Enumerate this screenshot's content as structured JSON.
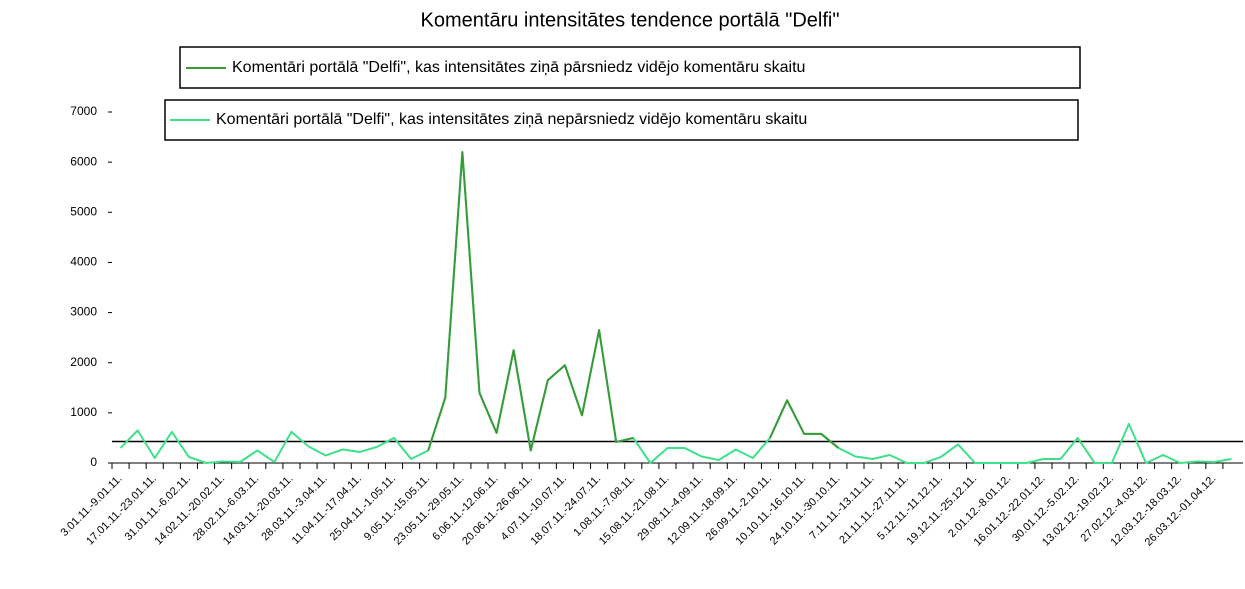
{
  "chart_data": {
    "type": "line",
    "title": "Komentāru intensitātes tendence portālā \"Delfi\"",
    "categories": [
      "3.01.11.-9.01.11.",
      null,
      "17.01.11.-23.01.11.",
      null,
      "31.01.11.-6.02.11.",
      null,
      "14.02.11.-20.02.11.",
      null,
      "28.02.11.-6.03.11.",
      null,
      "14.03.11.-20.03.11.",
      null,
      "28.03.11.-3.04.11.",
      null,
      "11.04.11.-17.04.11.",
      null,
      "25.04.11.-1.05.11.",
      null,
      "9.05.11.-15.05.11.",
      null,
      "23.05.11.-29.05.11.",
      null,
      "6.06.11.-12.06.11.",
      null,
      "20.06.11.-26.06.11.",
      null,
      "4.07.11.-10.07.11.",
      null,
      "18.07.11.-24.07.11.",
      null,
      "1.08.11.-7.08.11.",
      null,
      "15.08.11.-21.08.11.",
      null,
      "29.08.11.-4.09.11.",
      null,
      "12.09.11.-18.09.11.",
      null,
      "26.09.11.-2.10.11.",
      null,
      "10.10.11.-16.10.11.",
      null,
      "24.10.11.-30.10.11.",
      null,
      "7.11.11.-13.11.11.",
      null,
      "21.11.11.-27.11.11.",
      null,
      "5.12.11.-11.12.11.",
      null,
      "19.12.11.-25.12.11.",
      null,
      "2.01.12.-8.01.12.",
      null,
      "16.01.12.-22.01.12.",
      null,
      "30.01.12.-5.02.12.",
      null,
      "13.02.12.-19.02.12.",
      null,
      "27.02.12.-4.03.12.",
      null,
      "12.03.12.-18.03.12.",
      null,
      "26.03.12.-01.04.12.",
      null
    ],
    "series": [
      {
        "name": "Komentāri portālā \"Delfi\", kas intensitātes ziņā pārsniedz vidējo komentāru skaitu",
        "color": "#3a9a3a",
        "values": [
          null,
          null,
          null,
          null,
          null,
          null,
          null,
          null,
          null,
          null,
          null,
          null,
          null,
          null,
          null,
          null,
          null,
          null,
          250,
          1300,
          6200,
          1400,
          600,
          2250,
          250,
          1650,
          1950,
          950,
          2650,
          420,
          500,
          null,
          null,
          null,
          null,
          null,
          null,
          null,
          500,
          1250,
          580,
          580,
          300,
          null,
          null,
          null,
          null,
          null,
          null,
          null,
          null,
          null,
          null,
          null,
          null,
          null,
          null,
          null,
          null,
          null,
          null,
          null,
          null,
          null,
          null,
          null
        ]
      },
      {
        "name": "Komentāri portālā \"Delfi\", kas intensitātes ziņā nepārsniedz vidējo komentāru skaitu",
        "color": "#3ee08a",
        "values": [
          300,
          650,
          100,
          620,
          120,
          0,
          30,
          20,
          250,
          20,
          620,
          330,
          150,
          270,
          220,
          320,
          500,
          80,
          250,
          1300,
          6200,
          1400,
          600,
          2250,
          250,
          1650,
          1950,
          950,
          2650,
          420,
          500,
          0,
          300,
          300,
          130,
          60,
          270,
          100,
          500,
          1250,
          580,
          580,
          300,
          130,
          80,
          160,
          0,
          0,
          120,
          370,
          0,
          0,
          0,
          0,
          80,
          80,
          500,
          0,
          0,
          780,
          0,
          160,
          0,
          30,
          20,
          80
        ]
      }
    ],
    "reference_line": 430,
    "ylim": [
      0,
      7000
    ],
    "yticks": [
      0,
      1000,
      2000,
      3000,
      4000,
      5000,
      6000,
      7000
    ]
  }
}
